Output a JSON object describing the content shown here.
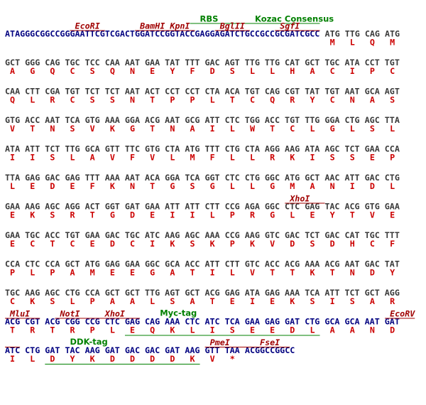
{
  "lines": [
    {
      "prefix": "ATAGGGCGGCCGGGAATTCGTCGACTGGATCCGGTACCGAGGAGATCTGCCGCCGCGATCGCC",
      "codons": "ATG TTG CAG ATG",
      "aa": [
        "M",
        "L",
        "Q",
        "M"
      ]
    },
    {
      "codons": "GCT GGG CAG TGC TCC CAA AAT GAA TAT TTT GAC AGT TTG TTG CAT GCT TGC ATA CCT TGT",
      "aa": [
        "A",
        "G",
        "Q",
        "C",
        "S",
        "Q",
        "N",
        "E",
        "Y",
        "F",
        "D",
        "S",
        "L",
        "L",
        "H",
        "A",
        "C",
        "I",
        "P",
        "C"
      ]
    },
    {
      "codons": "CAA CTT CGA TGT TCT TCT AAT ACT CCT CCT CTA ACA TGT CAG CGT TAT TGT AAT GCA AGT",
      "aa": [
        "Q",
        "L",
        "R",
        "C",
        "S",
        "S",
        "N",
        "T",
        "P",
        "P",
        "L",
        "T",
        "C",
        "Q",
        "R",
        "Y",
        "C",
        "N",
        "A",
        "S"
      ]
    },
    {
      "codons": "GTG ACC AAT TCA GTG AAA GGA ACG AAT GCG ATT CTC TGG ACC TGT TTG GGA CTG AGC TTA",
      "aa": [
        "V",
        "T",
        "N",
        "S",
        "V",
        "K",
        "G",
        "T",
        "N",
        "A",
        "I",
        "L",
        "W",
        "T",
        "C",
        "L",
        "G",
        "L",
        "S",
        "L"
      ]
    },
    {
      "codons": "ATA ATT TCT TTG GCA GTT TTC GTG CTA ATG TTT CTG CTA AGG AAG ATA AGC TCT GAA CCA",
      "aa": [
        "I",
        "I",
        "S",
        "L",
        "A",
        "V",
        "F",
        "V",
        "L",
        "M",
        "F",
        "L",
        "L",
        "R",
        "K",
        "I",
        "S",
        "S",
        "E",
        "P"
      ]
    },
    {
      "codons": "TTA GAG GAC GAG TTT AAA AAT ACA GGA TCA GGT CTC CTG GGC ATG GCT AAC ATT GAC CTG",
      "aa": [
        "L",
        "E",
        "D",
        "E",
        "F",
        "K",
        "N",
        "T",
        "G",
        "S",
        "G",
        "L",
        "L",
        "G",
        "M",
        "A",
        "N",
        "I",
        "D",
        "L"
      ]
    },
    {
      "codons": "GAA AAG AGC AGG ACT GGT GAT GAA ATT ATT CTT CCG AGA GGC CTC GAG TAC ACG GTG GAA",
      "aa": [
        "E",
        "K",
        "S",
        "R",
        "T",
        "G",
        "D",
        "E",
        "I",
        "I",
        "L",
        "P",
        "R",
        "G",
        "L",
        "E",
        "Y",
        "T",
        "V",
        "E"
      ]
    },
    {
      "codons": "GAA TGC ACC TGT GAA GAC TGC ATC AAG AGC AAA CCG AAG GTC GAC TCT GAC CAT TGC TTT",
      "aa": [
        "E",
        "C",
        "T",
        "C",
        "E",
        "D",
        "C",
        "I",
        "K",
        "S",
        "K",
        "P",
        "K",
        "V",
        "D",
        "S",
        "D",
        "H",
        "C",
        "F"
      ]
    },
    {
      "codons": "CCA CTC CCA GCT ATG GAG GAA GGC GCA ACC ATT CTT GTC ACC ACG AAA ACG AAT GAC TAT",
      "aa": [
        "P",
        "L",
        "P",
        "A",
        "M",
        "E",
        "E",
        "G",
        "A",
        "T",
        "I",
        "L",
        "V",
        "T",
        "T",
        "K",
        "T",
        "N",
        "D",
        "Y"
      ]
    },
    {
      "codons": "TGC AAG AGC CTG CCA GCT GCT TTG AGT GCT ACG GAG ATA GAG AAA TCA ATT TCT GCT AGG",
      "aa": [
        "C",
        "K",
        "S",
        "L",
        "P",
        "A",
        "A",
        "L",
        "S",
        "A",
        "T",
        "E",
        "I",
        "E",
        "K",
        "S",
        "I",
        "S",
        "A",
        "R"
      ]
    },
    {
      "codons": "ACG CGT ACG CGG CCG CTC GAG CAG AAA CTC ATC TCA GAA GAG GAT CTG GCA GCA AAT GAT",
      "aa": [
        "T",
        "R",
        "T",
        "R",
        "P",
        "L",
        "E",
        "Q",
        "K",
        "L",
        "I",
        "S",
        "E",
        "E",
        "D",
        "L",
        "A",
        "A",
        "N",
        "D"
      ]
    },
    {
      "codons": "ATC CTG GAT TAC AAG GAT GAC GAC GAT AAG GTT TAA",
      "suffix": "ACGGCCGGCC",
      "aa": [
        "I",
        "L",
        "D",
        "Y",
        "K",
        "D",
        "D",
        "D",
        "D",
        "K",
        "V",
        "*"
      ]
    }
  ],
  "annotations": [
    "RBS",
    "Kozac Consensus",
    "EcoRI",
    "BamHI",
    "KpnI",
    "BglII",
    "SgfI",
    "XhoI",
    "MluI",
    "NotI",
    "XhoI",
    "Myc-tag",
    "EcoRV",
    "DDK-tag",
    "PmeI",
    "FseI"
  ]
}
